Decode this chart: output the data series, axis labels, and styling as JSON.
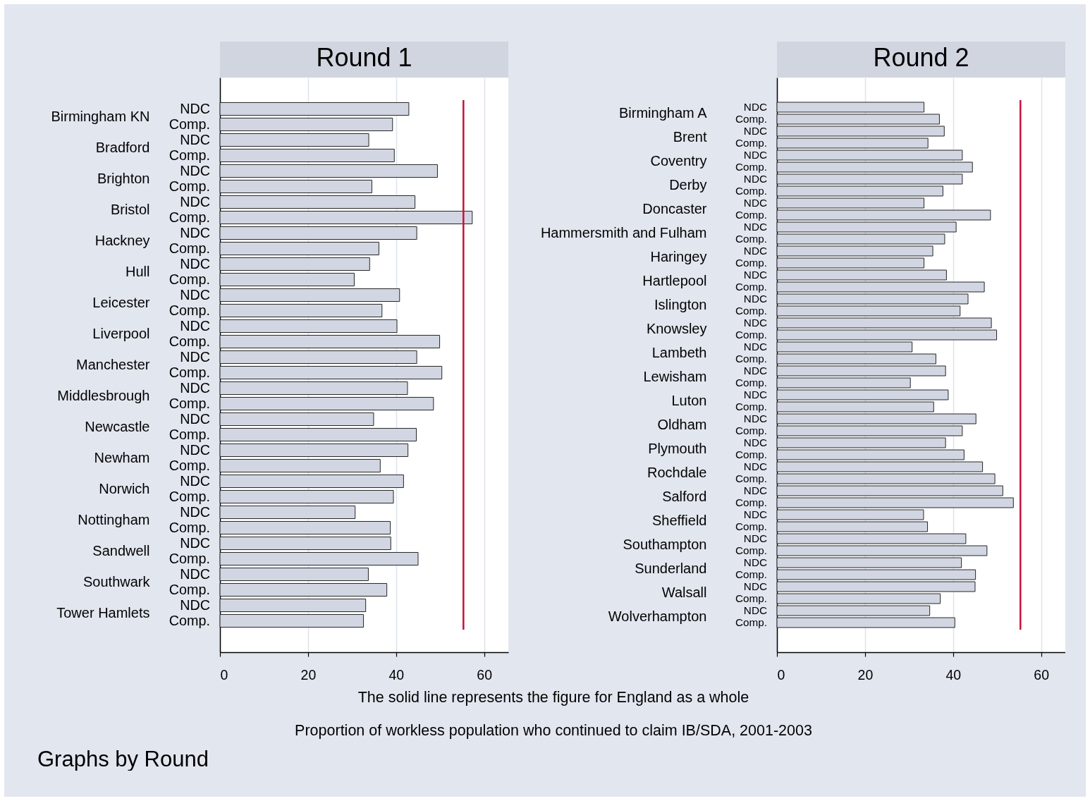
{
  "chart_data": [
    {
      "type": "bar",
      "orientation": "horizontal",
      "title": "Round 1",
      "categories": [
        "Birmingham KN",
        "Bradford",
        "Brighton",
        "Bristol",
        "Hackney",
        "Hull",
        "Leicester",
        "Liverpool",
        "Manchester",
        "Middlesbrough",
        "Newcastle",
        "Newham",
        "Norwich",
        "Nottingham",
        "Sandwell",
        "Southwark",
        "Tower Hamlets"
      ],
      "series": [
        {
          "name": "NDC",
          "color": "#d1d6e2",
          "values": [
            42.9,
            33.8,
            49.4,
            44.3,
            44.7,
            34.0,
            40.8,
            40.2,
            44.7,
            42.6,
            34.9,
            42.7,
            41.7,
            30.7,
            38.8,
            33.7,
            33.1
          ]
        },
        {
          "name": "Comp.",
          "color": "#d1d6e2",
          "values": [
            39.2,
            39.6,
            34.5,
            57.3,
            36.1,
            30.5,
            36.8,
            49.9,
            50.4,
            48.5,
            44.6,
            36.4,
            39.4,
            38.7,
            45.0,
            37.9,
            32.6
          ]
        }
      ],
      "xlim": [
        0,
        65.5
      ],
      "xticks": [
        0,
        20,
        40,
        60
      ],
      "grid": "x",
      "ref_lines": [
        {
          "axis": "x",
          "value": 55.3,
          "color": "#c8103c"
        }
      ],
      "xlabel": "Proportion of workless population who continued to claim IB/SDA, 2001-2003",
      "annotations": [
        "The solid line represents the figure for England as a whole",
        "Graphs by Round"
      ]
    },
    {
      "type": "bar",
      "orientation": "horizontal",
      "title": "Round 2",
      "categories": [
        "Birmingham A",
        "Brent",
        "Coventry",
        "Derby",
        "Doncaster",
        "Hammersmith and Fulham",
        "Haringey",
        "Hartlepool",
        "Islington",
        "Knowsley",
        "Lambeth",
        "Lewisham",
        "Luton",
        "Oldham",
        "Plymouth",
        "Rochdale",
        "Salford",
        "Sheffield",
        "Southampton",
        "Sunderland",
        "Walsall",
        "Wolverhampton"
      ],
      "series": [
        {
          "name": "NDC",
          "color": "#d1d6e2",
          "values": [
            33.4,
            38.0,
            42.1,
            42.1,
            33.4,
            40.7,
            35.4,
            38.5,
            43.4,
            48.7,
            30.7,
            38.3,
            38.9,
            45.2,
            38.3,
            46.7,
            51.3,
            33.3,
            42.9,
            41.9,
            45.0,
            34.7
          ]
        },
        {
          "name": "Comp.",
          "color": "#d1d6e2",
          "values": [
            36.9,
            34.3,
            44.4,
            37.7,
            48.5,
            38.1,
            33.4,
            47.1,
            41.6,
            49.9,
            36.1,
            30.3,
            35.6,
            42.1,
            42.5,
            49.5,
            53.7,
            34.2,
            47.7,
            45.1,
            37.1,
            40.4
          ]
        }
      ],
      "xlim": [
        0,
        65.5
      ],
      "xticks": [
        0,
        20,
        40,
        60
      ],
      "grid": "x",
      "ref_lines": [
        {
          "axis": "x",
          "value": 55.3,
          "color": "#c8103c"
        }
      ]
    }
  ]
}
